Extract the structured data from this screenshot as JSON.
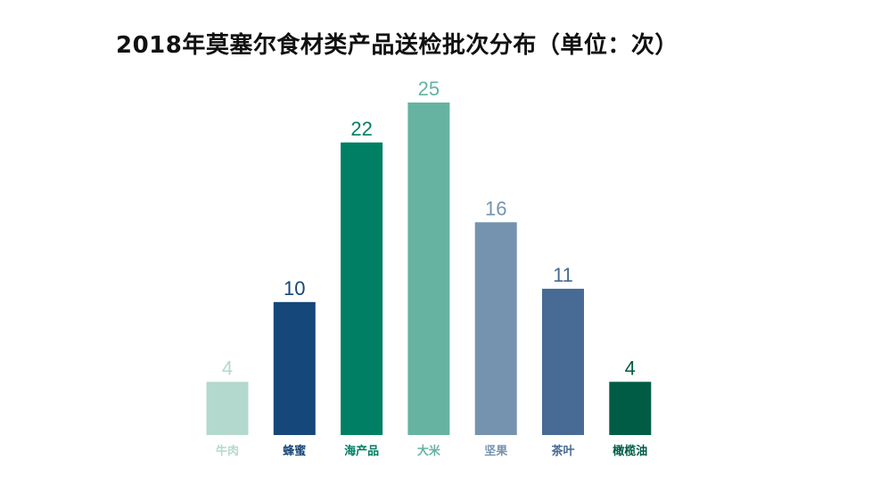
{
  "chart_data": {
    "type": "bar",
    "title": "2018年莫塞尔食材类产品送检批次分布（单位：次）",
    "categories": [
      "牛肉",
      "蜂蜜",
      "海产品",
      "大米",
      "坚果",
      "茶叶",
      "橄榄油"
    ],
    "values": [
      4,
      10,
      22,
      25,
      16,
      11,
      4
    ],
    "colors": [
      "#b3d9cf",
      "#15477a",
      "#007f64",
      "#66b3a1",
      "#7593ae",
      "#476b94",
      "#005c45"
    ],
    "ylim": [
      0,
      25
    ],
    "grid": false,
    "legend": "none",
    "data_labels": true
  }
}
